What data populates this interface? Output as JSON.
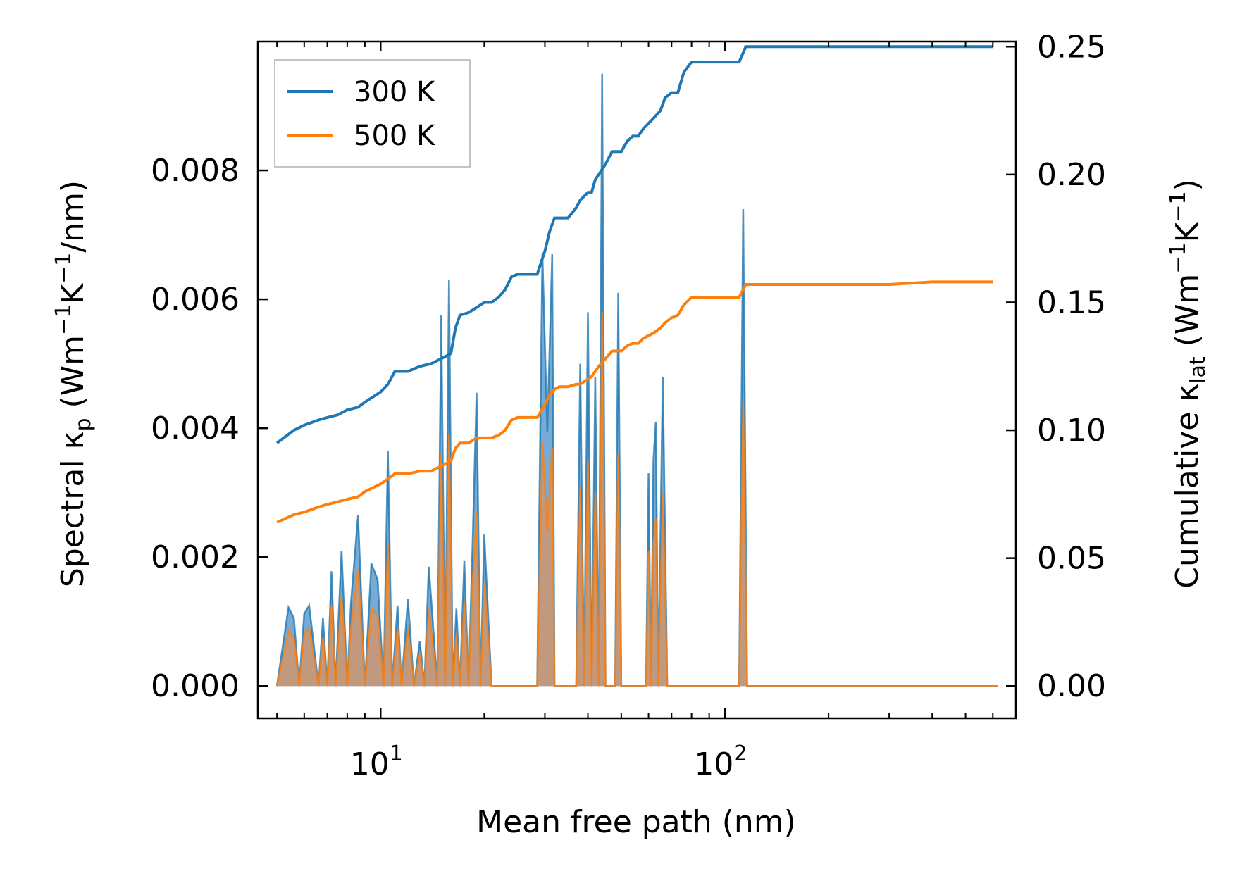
{
  "chart_data": {
    "type": "line",
    "xlabel": "Mean free path (nm)",
    "ylabel_left": {
      "prefix": "Spectral κ",
      "sub": "p",
      "units_pre": " (Wm",
      "sup1": "−1",
      "mid": "K",
      "sup2": "−1",
      "units_post": "/nm)"
    },
    "ylabel_right": {
      "prefix": "Cumulative κ",
      "sub": "lat",
      "units_pre": " (Wm",
      "sup1": "−1",
      "mid": "K",
      "sup2": "−1",
      "units_post": ")"
    },
    "xscale": "log",
    "xlim": [
      4.4,
      700
    ],
    "ylim_left": [
      -0.0005,
      0.01
    ],
    "ylim_right": [
      -0.0126,
      0.252
    ],
    "x_ticks": [
      {
        "value": 10,
        "base": "10",
        "exp": "1"
      },
      {
        "value": 100,
        "base": "10",
        "exp": "2"
      }
    ],
    "y_ticks_left": [
      "0.000",
      "0.002",
      "0.004",
      "0.006",
      "0.008"
    ],
    "y_ticks_left_values": [
      0,
      0.002,
      0.004,
      0.006,
      0.008
    ],
    "y_ticks_right": [
      "0.00",
      "0.05",
      "0.10",
      "0.15",
      "0.20",
      "0.25"
    ],
    "y_ticks_right_values": [
      0,
      0.05,
      0.1,
      0.15,
      0.2,
      0.25
    ],
    "legend": {
      "position": "top-left",
      "entries": [
        "300 K",
        "500 K"
      ]
    },
    "colors": {
      "300 K": "#1f77b4",
      "500 K": "#ff7f0e",
      "fill_300": "#4a8fc4",
      "fill_500": "#d2956a"
    },
    "series": [
      {
        "name": "300 K",
        "axis": "right",
        "kind": "cumulative",
        "x": [
          5,
          5.6,
          6,
          6.6,
          7,
          7.5,
          8,
          8.6,
          9,
          10,
          10.5,
          11,
          12,
          13,
          14,
          15,
          16,
          16.5,
          17,
          18,
          19,
          20,
          21,
          22,
          23,
          24,
          25,
          27,
          28.5,
          30,
          31,
          32,
          33,
          35,
          37,
          38,
          40,
          41,
          42,
          43,
          45,
          47,
          48,
          50,
          52,
          54,
          56,
          58,
          60,
          62,
          65,
          67,
          70,
          73,
          76,
          80,
          85,
          90,
          100,
          110,
          115,
          120,
          150,
          200,
          300,
          400,
          500,
          600
        ],
        "y": [
          0.095,
          0.1,
          0.102,
          0.104,
          0.105,
          0.106,
          0.108,
          0.109,
          0.111,
          0.115,
          0.118,
          0.123,
          0.123,
          0.125,
          0.126,
          0.128,
          0.13,
          0.14,
          0.145,
          0.146,
          0.148,
          0.15,
          0.15,
          0.152,
          0.155,
          0.16,
          0.161,
          0.161,
          0.161,
          0.17,
          0.178,
          0.183,
          0.183,
          0.183,
          0.187,
          0.19,
          0.193,
          0.193,
          0.198,
          0.2,
          0.204,
          0.209,
          0.209,
          0.209,
          0.213,
          0.215,
          0.215,
          0.218,
          0.22,
          0.222,
          0.225,
          0.23,
          0.232,
          0.232,
          0.24,
          0.244,
          0.244,
          0.244,
          0.244,
          0.244,
          0.25,
          0.25,
          0.25,
          0.25,
          0.25,
          0.25,
          0.25,
          0.25
        ]
      },
      {
        "name": "500 K",
        "axis": "right",
        "kind": "cumulative",
        "x": [
          5,
          5.6,
          6,
          6.6,
          7,
          7.5,
          8,
          8.6,
          9,
          10,
          10.5,
          11,
          12,
          13,
          14,
          15,
          16,
          16.5,
          17,
          18,
          19,
          20,
          21,
          22,
          23,
          24,
          25,
          27,
          28.5,
          30,
          31,
          32,
          33,
          35,
          37,
          38,
          40,
          41,
          42,
          43,
          45,
          47,
          48,
          50,
          52,
          54,
          56,
          58,
          60,
          62,
          65,
          67,
          70,
          73,
          76,
          80,
          85,
          90,
          100,
          110,
          115,
          120,
          150,
          200,
          300,
          400,
          500,
          600
        ],
        "y": [
          0.064,
          0.067,
          0.068,
          0.07,
          0.071,
          0.072,
          0.073,
          0.074,
          0.076,
          0.079,
          0.081,
          0.083,
          0.083,
          0.084,
          0.084,
          0.086,
          0.088,
          0.093,
          0.095,
          0.095,
          0.097,
          0.097,
          0.097,
          0.098,
          0.1,
          0.104,
          0.105,
          0.105,
          0.105,
          0.11,
          0.114,
          0.116,
          0.117,
          0.117,
          0.118,
          0.118,
          0.12,
          0.121,
          0.123,
          0.125,
          0.128,
          0.131,
          0.131,
          0.131,
          0.133,
          0.134,
          0.134,
          0.136,
          0.137,
          0.138,
          0.14,
          0.142,
          0.144,
          0.145,
          0.149,
          0.152,
          0.152,
          0.152,
          0.152,
          0.152,
          0.157,
          0.157,
          0.157,
          0.157,
          0.157,
          0.158,
          0.158,
          0.158
        ]
      },
      {
        "name": "300 K spectral",
        "axis": "left",
        "kind": "spectral",
        "x": [
          5,
          5.4,
          5.6,
          5.8,
          6,
          6.2,
          6.6,
          6.8,
          7,
          7.2,
          7.4,
          7.7,
          8,
          8.2,
          8.6,
          9,
          9.4,
          9.8,
          10.2,
          10.5,
          10.8,
          11.2,
          11.5,
          12,
          12.5,
          13,
          13.4,
          13.8,
          14.2,
          14.6,
          15,
          15.4,
          15.8,
          16.2,
          16.6,
          17,
          17.5,
          18,
          18.5,
          19,
          19.5,
          20,
          21,
          22,
          23,
          24,
          25,
          26,
          28.5,
          29.5,
          30.5,
          31.5,
          32,
          32.5,
          33,
          34,
          35,
          36,
          37,
          38,
          39,
          40,
          41,
          42,
          43,
          44,
          45,
          46,
          47,
          48,
          49,
          50,
          51,
          52,
          53,
          54,
          55,
          56,
          57,
          58,
          59,
          60,
          61,
          62,
          63,
          64,
          66,
          68,
          70,
          72,
          74,
          76,
          78,
          80,
          82,
          84,
          110,
          113,
          116,
          119,
          122,
          124,
          400,
          420,
          440,
          580,
          600,
          620
        ],
        "y": [
          0,
          0.00122,
          0.00105,
          0.0,
          0.00112,
          0.00125,
          0.0,
          0.00105,
          0.0,
          0.00178,
          0.0,
          0.0021,
          0.0,
          0.00128,
          0.00265,
          0.0,
          0.0019,
          0.00165,
          0.0,
          0.00365,
          0.0,
          0.00125,
          0.0,
          0.00135,
          0.0,
          0.0007,
          0.0,
          0.00185,
          0.00095,
          0.0,
          0.00575,
          0.0,
          0.0063,
          0.0,
          0.0012,
          0.0,
          0.00195,
          0.0,
          0.0022,
          0.00455,
          0.0,
          0.00235,
          0.0,
          0.0,
          0.0,
          0.0,
          0.0,
          0.0,
          0.0,
          0.0067,
          0.00395,
          0.0067,
          0.0,
          0.0,
          0.0,
          0.0,
          0.0,
          0.0,
          0.0,
          0.005,
          0.0,
          0.0058,
          0.0,
          0.0048,
          0.0,
          0.0095,
          0.0,
          0.0,
          0.0,
          0.0,
          0.0061,
          0.0,
          0.0,
          0.0,
          0.0,
          0.0,
          0.0,
          0.0,
          0.0,
          0.0,
          0.0,
          0.0033,
          0.0,
          0.0035,
          0.0041,
          0.0,
          0.0048,
          0.0,
          0.0,
          0.0,
          0.0,
          0.0,
          0.0,
          0.0,
          0.0,
          0.0,
          0.0,
          0.0074,
          0.0,
          0.0,
          0.0,
          0.0,
          0.0,
          0.0,
          0.0,
          0.0,
          0.0,
          0.0
        ]
      },
      {
        "name": "500 K spectral",
        "axis": "left",
        "kind": "spectral",
        "x": [
          5,
          5.4,
          5.6,
          5.8,
          6,
          6.2,
          6.6,
          6.8,
          7,
          7.2,
          7.4,
          7.7,
          8,
          8.2,
          8.6,
          9,
          9.4,
          9.8,
          10.2,
          10.5,
          10.8,
          11.2,
          11.5,
          12,
          12.5,
          13,
          13.4,
          13.8,
          14.2,
          14.6,
          15,
          15.4,
          15.8,
          16.2,
          16.6,
          17,
          17.5,
          18,
          18.5,
          19,
          19.5,
          20,
          21,
          22,
          23,
          24,
          25,
          26,
          28.5,
          29.5,
          30.5,
          31.5,
          32,
          32.5,
          33,
          34,
          35,
          36,
          37,
          38,
          39,
          40,
          41,
          42,
          43,
          44,
          45,
          46,
          47,
          48,
          49,
          50,
          51,
          52,
          53,
          54,
          55,
          56,
          57,
          58,
          59,
          60,
          61,
          62,
          63,
          64,
          66,
          68,
          70,
          72,
          74,
          76,
          78,
          80,
          82,
          84,
          110,
          113,
          116,
          119,
          122,
          124,
          400,
          420,
          440,
          580,
          600,
          620
        ],
        "y": [
          0,
          0.00085,
          0.00075,
          0.0,
          0.0008,
          0.0009,
          0.0,
          0.00075,
          0.0,
          0.00125,
          0.0,
          0.0014,
          0.0,
          0.0009,
          0.0018,
          0.0,
          0.0012,
          0.0011,
          0.0,
          0.0022,
          0.0,
          0.0009,
          0.0,
          0.0009,
          0.0,
          0.0005,
          0.0,
          0.0012,
          0.0006,
          0.0,
          0.0036,
          0.0,
          0.0039,
          0.0,
          0.0008,
          0.0,
          0.0013,
          0.0,
          0.0016,
          0.0027,
          0.0,
          0.0016,
          0.0,
          0.0,
          0.0,
          0.0,
          0.0,
          0.0,
          0.0,
          0.0038,
          0.0024,
          0.0037,
          0.0,
          0.0,
          0.0,
          0.0,
          0.0,
          0.0,
          0.0,
          0.0031,
          0.0,
          0.0035,
          0.0,
          0.003,
          0.0,
          0.0058,
          0.0,
          0.0,
          0.0,
          0.0,
          0.0036,
          0.0,
          0.0,
          0.0,
          0.0,
          0.0,
          0.0,
          0.0,
          0.0,
          0.0,
          0.0,
          0.0021,
          0.0,
          0.0022,
          0.0026,
          0.0,
          0.003,
          0.0,
          0.0,
          0.0,
          0.0,
          0.0,
          0.0,
          0.0,
          0.0,
          0.0,
          0.0,
          0.0044,
          0.0,
          0.0,
          0.0,
          0.0,
          0.0,
          0.0,
          0.0,
          0.0,
          0.0,
          0.0
        ]
      }
    ]
  }
}
